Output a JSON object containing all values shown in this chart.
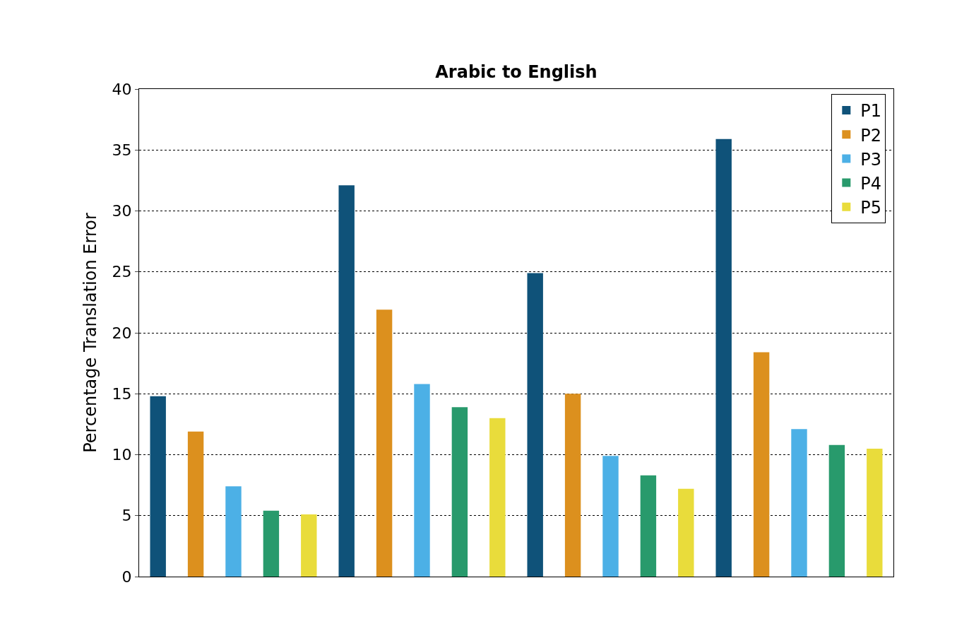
{
  "chart_data": {
    "type": "bar",
    "title": "Arabic to English",
    "ylabel": "Percentage Translation Error",
    "categories": [
      null,
      null,
      null,
      null
    ],
    "series": [
      {
        "name": "P1",
        "color": "#0f5279",
        "values": [
          14.8,
          32.1,
          24.9,
          35.9
        ]
      },
      {
        "name": "P2",
        "color": "#dc901e",
        "values": [
          11.9,
          21.9,
          15.0,
          18.4
        ]
      },
      {
        "name": "P3",
        "color": "#4cb0e6",
        "values": [
          7.4,
          15.8,
          9.9,
          12.1
        ]
      },
      {
        "name": "P4",
        "color": "#289a6c",
        "values": [
          5.4,
          13.9,
          8.3,
          10.8
        ]
      },
      {
        "name": "P5",
        "color": "#e9dc3b",
        "values": [
          5.1,
          13.0,
          7.2,
          10.5
        ]
      }
    ],
    "ylim": [
      0,
      40
    ],
    "yticks": [
      0,
      5,
      10,
      15,
      20,
      25,
      30,
      35,
      40
    ],
    "grid": "y",
    "legend": "top right"
  }
}
